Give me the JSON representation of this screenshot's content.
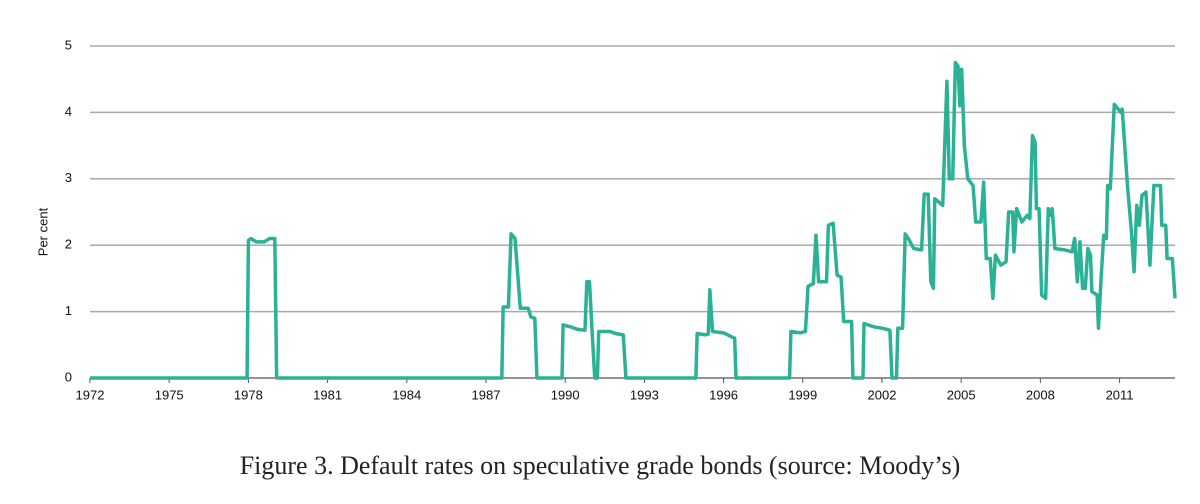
{
  "chart_data": {
    "type": "line",
    "caption": "Figure 3. Default rates on speculative grade bonds (source: Moody’s)",
    "ylabel": "Per cent",
    "color": "#2bb196",
    "grid": true,
    "xlim": [
      1972,
      2013.1
    ],
    "xticks": [
      1972,
      1975,
      1978,
      1981,
      1984,
      1987,
      1990,
      1993,
      1996,
      1999,
      2002,
      2005,
      2008,
      2011
    ],
    "ylim": [
      0,
      5
    ],
    "yticks": [
      0,
      1,
      2,
      3,
      4,
      5
    ],
    "x": [
      1972,
      1977.95,
      1978.0,
      1978.1,
      1978.3,
      1978.6,
      1978.8,
      1979.0,
      1979.07,
      1987.6,
      1987.65,
      1987.85,
      1987.95,
      1988.1,
      1988.3,
      1988.6,
      1988.7,
      1988.85,
      1988.93,
      1989.88,
      1989.92,
      1990.2,
      1990.5,
      1990.75,
      1990.82,
      1990.92,
      1991.02,
      1991.12,
      1991.22,
      1991.27,
      1991.7,
      1991.9,
      1992.2,
      1992.3,
      1994.95,
      1995.0,
      1995.3,
      1995.42,
      1995.48,
      1995.58,
      1996.0,
      1996.3,
      1996.42,
      1996.47,
      1998.5,
      1998.55,
      1998.9,
      1999.1,
      1999.2,
      1999.4,
      1999.5,
      1999.6,
      1999.9,
      1999.97,
      2000.15,
      2000.3,
      2000.45,
      2000.55,
      2000.85,
      2000.9,
      2001.28,
      2001.32,
      2001.7,
      2002.0,
      2002.3,
      2002.38,
      2002.55,
      2002.6,
      2002.78,
      2002.88,
      2003.0,
      2003.2,
      2003.5,
      2003.6,
      2003.75,
      2003.85,
      2003.95,
      2004.0,
      2004.3,
      2004.46,
      2004.55,
      2004.68,
      2004.78,
      2004.88,
      2004.95,
      2005.02,
      2005.12,
      2005.25,
      2005.45,
      2005.55,
      2005.75,
      2005.85,
      2005.95,
      2006.1,
      2006.2,
      2006.3,
      2006.5,
      2006.7,
      2006.8,
      2006.95,
      2007.0,
      2007.1,
      2007.3,
      2007.5,
      2007.6,
      2007.7,
      2007.8,
      2007.85,
      2007.95,
      2008.05,
      2008.2,
      2008.3,
      2008.4,
      2008.45,
      2008.55,
      2008.9,
      2009.2,
      2009.3,
      2009.4,
      2009.5,
      2009.6,
      2009.7,
      2009.8,
      2009.9,
      2009.95,
      2010.15,
      2010.2,
      2010.3,
      2010.4,
      2010.5,
      2010.55,
      2010.65,
      2010.8,
      2010.95,
      2011.05,
      2011.1,
      2011.3,
      2011.45,
      2011.55,
      2011.65,
      2011.75,
      2011.85,
      2012.0,
      2012.15,
      2012.3,
      2012.55,
      2012.6,
      2012.75,
      2012.8,
      2013.0,
      2013.1
    ],
    "values": [
      0,
      0,
      2.07,
      2.1,
      2.05,
      2.05,
      2.1,
      2.1,
      0,
      0,
      1.07,
      1.07,
      2.17,
      2.1,
      1.05,
      1.05,
      0.92,
      0.9,
      0,
      0,
      0.8,
      0.77,
      0.73,
      0.72,
      1.45,
      1.45,
      0.7,
      0,
      0,
      0.7,
      0.7,
      0.67,
      0.65,
      0,
      0,
      0.67,
      0.65,
      0.66,
      1.33,
      0.7,
      0.68,
      0.62,
      0.6,
      0,
      0,
      0.7,
      0.68,
      0.7,
      1.38,
      1.42,
      2.15,
      1.45,
      1.45,
      2.3,
      2.33,
      1.55,
      1.52,
      0.85,
      0.85,
      0,
      0,
      0.82,
      0.77,
      0.75,
      0.72,
      0,
      0,
      0.75,
      0.75,
      2.17,
      2.1,
      1.95,
      1.93,
      2.77,
      2.77,
      1.45,
      1.35,
      2.7,
      2.6,
      4.47,
      3.0,
      3.0,
      4.75,
      4.7,
      4.1,
      4.65,
      3.5,
      3.0,
      2.9,
      2.35,
      2.35,
      2.95,
      1.8,
      1.8,
      1.2,
      1.85,
      1.7,
      1.75,
      2.5,
      2.5,
      1.9,
      2.55,
      2.35,
      2.45,
      2.4,
      3.65,
      3.55,
      2.55,
      2.55,
      1.25,
      1.2,
      2.55,
      2.45,
      2.55,
      1.95,
      1.93,
      1.9,
      2.1,
      1.45,
      2.05,
      1.35,
      1.35,
      1.95,
      1.85,
      1.3,
      1.25,
      0.75,
      1.5,
      2.15,
      2.1,
      2.9,
      2.85,
      4.12,
      4.05,
      4.0,
      4.05,
      2.9,
      2.2,
      1.6,
      2.6,
      2.3,
      2.75,
      2.8,
      1.7,
      2.9,
      2.9,
      2.3,
      2.3,
      1.8,
      1.8,
      1.2
    ]
  }
}
